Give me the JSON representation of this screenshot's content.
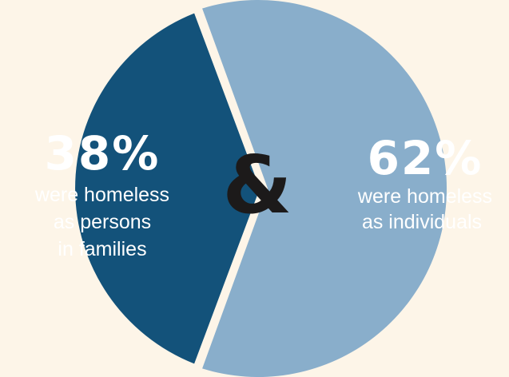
{
  "chart_data": {
    "type": "pie",
    "separator": "&",
    "slices": [
      {
        "value": 38,
        "percent_label": "38%",
        "lines": [
          "were homeless",
          "as persons",
          "in families"
        ],
        "color": "#13527a"
      },
      {
        "value": 62,
        "percent_label": "62%",
        "lines": [
          "were homeless",
          "as individuals"
        ],
        "color": "#89aecb"
      }
    ]
  },
  "colors": {
    "background": "#fdf5e8",
    "text": "#ffffff",
    "separator": "#1c1a1a"
  }
}
